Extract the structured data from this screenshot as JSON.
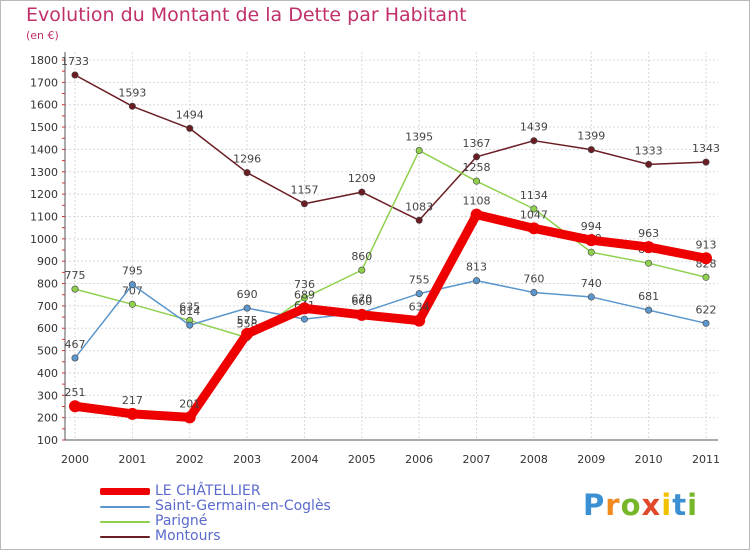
{
  "header": {
    "title": "Evolution du Montant de la Dette par Habitant",
    "subtitle": "(en €)"
  },
  "logo": {
    "letters": [
      "P",
      "r",
      "o",
      "x",
      "i",
      "t",
      "i"
    ],
    "colors": [
      "#3b8fd3",
      "#f08a1e",
      "#76b72a",
      "#e04a2b",
      "#f2c200",
      "#3b8fd3",
      "#76b72a"
    ]
  },
  "chart_data": {
    "type": "line",
    "title": "Evolution du Montant de la Dette par Habitant",
    "subtitle": "(en €)",
    "xlabel": "",
    "ylabel": "",
    "ylim": [
      100,
      1800
    ],
    "yticks": [
      100,
      200,
      300,
      400,
      500,
      600,
      700,
      800,
      900,
      1000,
      1100,
      1200,
      1300,
      1400,
      1500,
      1600,
      1700,
      1800
    ],
    "grid": true,
    "legend_position": "bottom-left",
    "categories": [
      "2000",
      "2001",
      "2002",
      "2003",
      "2004",
      "2005",
      "2006",
      "2007",
      "2008",
      "2009",
      "2010",
      "2011"
    ],
    "series": [
      {
        "name": "Montours",
        "color": "#6b1d24",
        "values": [
          1733,
          1593,
          1494,
          1296,
          1157,
          1209,
          1083,
          1367,
          1439,
          1399,
          1333,
          1343
        ],
        "labels": [
          "1733",
          "1593",
          "1494",
          "1296",
          "1157",
          "1209",
          "1083",
          "1367",
          "1439",
          "1399",
          "1333",
          "1343"
        ]
      },
      {
        "name": "Parigné",
        "color": "#8fd14f",
        "values": [
          775,
          707,
          635,
          558,
          736,
          860,
          1395,
          1258,
          1134,
          940,
          891,
          828
        ],
        "labels": [
          "775",
          "707",
          "635",
          "558",
          "736",
          "860",
          "1395",
          "1258",
          "1134",
          "940",
          "891",
          "828"
        ]
      },
      {
        "name": "Saint-Germain-en-Coglès",
        "color": "#5b97cc",
        "values": [
          467,
          795,
          614,
          690,
          641,
          670,
          755,
          813,
          760,
          740,
          681,
          622
        ],
        "labels": [
          "467",
          "795",
          "614",
          "690",
          "641",
          "670",
          "755",
          "813",
          "760",
          "740",
          "681",
          "622"
        ]
      },
      {
        "name": "LE CHÂTELLIER",
        "color": "#ee0000",
        "values": [
          251,
          217,
          201,
          575,
          689,
          660,
          634,
          1108,
          1047,
          994,
          963,
          913
        ],
        "labels": [
          "251",
          "217",
          "201",
          "575",
          "689",
          "660",
          "634",
          "1108",
          "1047",
          "994",
          "963",
          "913"
        ]
      }
    ],
    "legend": [
      {
        "name": "LE CHÂTELLIER",
        "color": "#ee0000"
      },
      {
        "name": "Saint-Germain-en-Coglès",
        "color": "#5b97cc"
      },
      {
        "name": "Parigné",
        "color": "#8fd14f"
      },
      {
        "name": "Montours",
        "color": "#6b1d24"
      }
    ]
  }
}
